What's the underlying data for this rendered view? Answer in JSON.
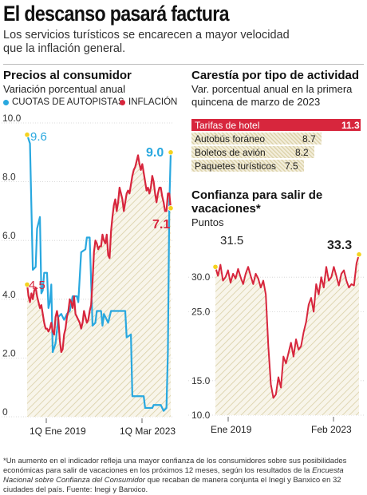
{
  "header": {
    "title": "El descanso pasará factura",
    "deck": "Los servicios turísticos se encarecen a mayor velocidad que la inflación general."
  },
  "colors": {
    "blue": "#29a8df",
    "red": "#d7263d",
    "hatch": "#ddd4b0",
    "bar_bg": "#e8e1c4",
    "dot": "#f4d21f",
    "grid": "#d0d0d0"
  },
  "chart_data": [
    {
      "type": "line",
      "title": "Precios al consumidor",
      "subtitle": "Variación porcentual anual",
      "ylim": [
        0,
        10
      ],
      "yticks": [
        "0",
        "2.0",
        "4.0",
        "6.0",
        "8.0",
        "10.0"
      ],
      "x_tick_labels": [
        "1Q Ene 2019",
        "1Q Mar 2023"
      ],
      "n_points": 102,
      "series": [
        {
          "name": "CUOTAS DE AUTOPISTAS",
          "color": "#29a8df",
          "start_label": "9.6",
          "end_label": "9.0",
          "segments": [
            [
              0,
              9.6
            ],
            [
              2,
              9.3
            ],
            [
              4,
              5.0
            ],
            [
              6,
              5.1
            ],
            [
              7,
              6.4
            ],
            [
              9,
              6.8
            ],
            [
              10,
              4.2
            ],
            [
              11,
              4.3
            ],
            [
              12,
              4.9
            ],
            [
              14,
              4.9
            ],
            [
              15,
              3.7
            ],
            [
              16,
              3.9
            ],
            [
              17,
              4.5
            ],
            [
              18,
              2.2
            ],
            [
              20,
              2.5
            ],
            [
              22,
              3.4
            ],
            [
              24,
              3.5
            ],
            [
              26,
              3.3
            ],
            [
              28,
              3.5
            ],
            [
              30,
              3.6
            ],
            [
              32,
              4.1
            ],
            [
              35,
              4.1
            ],
            [
              36,
              3.9
            ],
            [
              38,
              5.6
            ],
            [
              41,
              5.7
            ],
            [
              42,
              6.1
            ],
            [
              44,
              6.1
            ],
            [
              46,
              3.1
            ],
            [
              48,
              3.2
            ],
            [
              49,
              3.6
            ],
            [
              52,
              3.6
            ],
            [
              53,
              3.1
            ],
            [
              54,
              3.5
            ],
            [
              57,
              3.2
            ],
            [
              59,
              3.6
            ],
            [
              69,
              3.6
            ],
            [
              70,
              2.7
            ],
            [
              73,
              2.8
            ],
            [
              74,
              0.7
            ],
            [
              82,
              0.7
            ],
            [
              83,
              0.3
            ],
            [
              88,
              0.3
            ],
            [
              89,
              0.4
            ],
            [
              94,
              0.4
            ],
            [
              96,
              0.2
            ],
            [
              98,
              0.3
            ],
            [
              99,
              2.2
            ],
            [
              100,
              7.2
            ],
            [
              101,
              9.0
            ]
          ]
        },
        {
          "name": "INFLACIÓN",
          "color": "#d7263d",
          "start_label": "4.5",
          "end_label": "7.1",
          "segments": [
            [
              0,
              4.5
            ],
            [
              1,
              4.1
            ],
            [
              2,
              3.9
            ],
            [
              3,
              4.2
            ],
            [
              4,
              4.0
            ],
            [
              5,
              4.3
            ],
            [
              6,
              4.4
            ],
            [
              7,
              4.1
            ],
            [
              8,
              3.9
            ],
            [
              9,
              3.7
            ],
            [
              10,
              3.8
            ],
            [
              11,
              3.5
            ],
            [
              12,
              3.2
            ],
            [
              13,
              3.0
            ],
            [
              14,
              3.0
            ],
            [
              15,
              2.9
            ],
            [
              16,
              3.0
            ],
            [
              17,
              3.2
            ],
            [
              18,
              2.9
            ],
            [
              19,
              2.8
            ],
            [
              20,
              3.4
            ],
            [
              21,
              3.6
            ],
            [
              22,
              3.3
            ],
            [
              23,
              2.6
            ],
            [
              24,
              2.2
            ],
            [
              25,
              2.3
            ],
            [
              26,
              2.8
            ],
            [
              27,
              3.0
            ],
            [
              28,
              3.4
            ],
            [
              29,
              3.6
            ],
            [
              30,
              4.0
            ],
            [
              31,
              3.9
            ],
            [
              32,
              3.7
            ],
            [
              33,
              4.1
            ],
            [
              34,
              3.5
            ],
            [
              35,
              3.4
            ],
            [
              36,
              3.3
            ],
            [
              37,
              3.2
            ],
            [
              38,
              3.0
            ],
            [
              39,
              3.2
            ],
            [
              40,
              3.6
            ],
            [
              41,
              3.4
            ],
            [
              42,
              3.2
            ],
            [
              43,
              3.3
            ],
            [
              44,
              3.6
            ],
            [
              45,
              3.8
            ],
            [
              46,
              4.6
            ],
            [
              47,
              5.6
            ],
            [
              48,
              6.0
            ],
            [
              49,
              5.9
            ],
            [
              50,
              5.7
            ],
            [
              51,
              5.8
            ],
            [
              52,
              5.8
            ],
            [
              53,
              6.2
            ],
            [
              54,
              6.0
            ],
            [
              55,
              5.9
            ],
            [
              56,
              6.2
            ],
            [
              57,
              5.5
            ],
            [
              58,
              5.4
            ],
            [
              59,
              6.3
            ],
            [
              60,
              6.8
            ],
            [
              61,
              7.2
            ],
            [
              62,
              7.4
            ],
            [
              63,
              7.0
            ],
            [
              64,
              7.3
            ],
            [
              65,
              7.8
            ],
            [
              66,
              7.6
            ],
            [
              67,
              7.4
            ],
            [
              68,
              7.0
            ],
            [
              69,
              7.3
            ],
            [
              70,
              7.6
            ],
            [
              71,
              7.7
            ],
            [
              72,
              7.6
            ],
            [
              73,
              7.9
            ],
            [
              74,
              8.2
            ],
            [
              75,
              8.4
            ],
            [
              76,
              8.5
            ],
            [
              77,
              8.7
            ],
            [
              78,
              8.9
            ],
            [
              79,
              8.6
            ],
            [
              80,
              8.4
            ],
            [
              81,
              8.6
            ],
            [
              82,
              8.3
            ],
            [
              83,
              8.0
            ],
            [
              84,
              7.7
            ],
            [
              85,
              7.8
            ],
            [
              86,
              7.6
            ],
            [
              87,
              7.8
            ],
            [
              88,
              8.2
            ],
            [
              89,
              8.0
            ],
            [
              90,
              7.6
            ],
            [
              91,
              7.3
            ],
            [
              92,
              7.6
            ],
            [
              93,
              7.8
            ],
            [
              94,
              7.8
            ],
            [
              95,
              7.5
            ],
            [
              96,
              7.3
            ],
            [
              97,
              7.0
            ],
            [
              98,
              7.0
            ],
            [
              99,
              7.6
            ],
            [
              100,
              7.6
            ],
            [
              101,
              7.1
            ]
          ]
        }
      ]
    },
    {
      "type": "bar",
      "title": "Carestía por tipo de actividad",
      "subtitle": "Var. porcentual anual en la primera quincena de marzo de 2023",
      "categories": [
        "Tarifas de hotel",
        "Autobús foráneo",
        "Boletos de avión",
        "Paquetes turísticos"
      ],
      "values": [
        11.3,
        8.7,
        8.2,
        7.5
      ],
      "labels": [
        "11.3",
        "8.7",
        "8.2",
        "7.5"
      ]
    },
    {
      "type": "area",
      "title": "Confianza para salir de vacaciones*",
      "subtitle": "Puntos",
      "ylim": [
        10,
        35
      ],
      "yticks": [
        "10.0",
        "15.0",
        "25.0",
        "30.0"
      ],
      "x_tick_labels": [
        "Ene 2019",
        "Feb 2023"
      ],
      "start_label": "31.5",
      "end_label": "33.3",
      "values": [
        31.5,
        30.2,
        31.8,
        29.5,
        30.0,
        31.0,
        29.2,
        30.5,
        29.8,
        31.2,
        30.0,
        29.0,
        30.5,
        31.5,
        30.2,
        29.0,
        30.5,
        29.8,
        28.5,
        29.5,
        27.5,
        20.0,
        14.5,
        12.5,
        13.0,
        15.5,
        14.0,
        18.5,
        17.5,
        19.0,
        20.5,
        18.5,
        21.0,
        19.5,
        20.0,
        22.0,
        23.5,
        26.0,
        27.0,
        25.0,
        29.0,
        27.5,
        30.0,
        28.5,
        31.5,
        29.5,
        30.0,
        31.5,
        30.2,
        28.8,
        30.5,
        31.0,
        29.5,
        28.5,
        29.0,
        28.8,
        32.0,
        33.3
      ]
    }
  ],
  "footnote": {
    "part1": "*Un aumento en el indicador refleja una mayor confianza de los consumidores sobre sus posibilidades económicas para salir de vacaciones en los próximos 12 meses, según los resultados de la ",
    "italic": "Encuesta Nacional sobre Confianza del Consumidor",
    "part2": " que recaban de manera conjunta el Inegi y Banxico en 32 ciudades del país. Fuente: Inegi y Banxico."
  }
}
